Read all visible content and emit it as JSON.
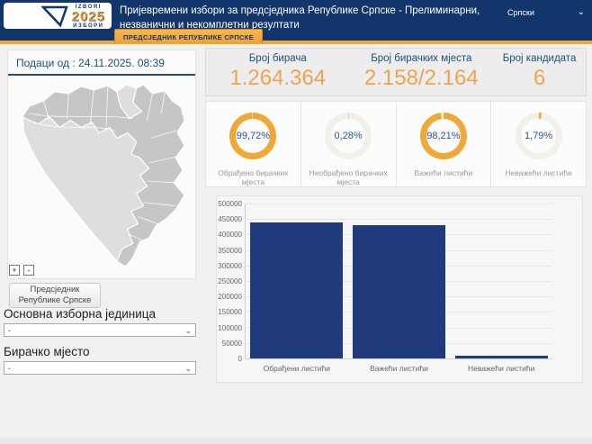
{
  "header": {
    "logo": {
      "top": "IZBORI",
      "year": "2025",
      "bottom": "ИЗБОРИ"
    },
    "title": "Пријевремени избори за предсједника Републике Српске - Прелиминарни, незванични и некомплетни резултати",
    "language": {
      "label": "Српски",
      "chevron": "⌄"
    },
    "tab": "ПРЕДСЈЕДНИК РЕПУБЛИКЕ СРПСКЕ"
  },
  "sidebar": {
    "data_as_of": "Подаци од : 24.11.2025. 08:39",
    "map_zoom_in": "+",
    "map_zoom_out": "-",
    "race_button": "Предсједник Републике Српске",
    "select_chevron": "⌄",
    "filters": [
      {
        "label": "Основна изборна јединица",
        "value": "-"
      },
      {
        "label": "Бирачко мјесто",
        "value": "-"
      }
    ]
  },
  "stats": [
    {
      "label": "Број бирача",
      "value": "1.264.364"
    },
    {
      "label": "Број бирачких мјеста",
      "value": "2.158/2.164"
    },
    {
      "label": "Број кандидата",
      "value": "6"
    }
  ],
  "gauges": [
    {
      "label": "Обрађено бирачких мјеста",
      "display": "99,72%",
      "percent": 99.72
    },
    {
      "label": "Необрађено бирачких мјеста",
      "display": "0,28%",
      "percent": 0.28
    },
    {
      "label": "Важећи листићи",
      "display": "98,21%",
      "percent": 98.21
    },
    {
      "label": "Неважећи листићи",
      "display": "1,79%",
      "percent": 1.79
    }
  ],
  "chart_data": {
    "type": "bar",
    "categories": [
      "Обрађени листићи",
      "Важећи листићи",
      "Неважећи листићи"
    ],
    "values": [
      438000,
      430000,
      7800
    ],
    "title": "",
    "xlabel": "",
    "ylabel": "",
    "ylim": [
      0,
      500000
    ],
    "ytick_step": 50000,
    "grid": true,
    "legend": false
  },
  "colors": {
    "header_navy": "#12366b",
    "accent_orange": "#f0a83a",
    "stat_value_orange": "#f0a24e",
    "bar_blue": "#1e3a7a",
    "donut_orange": "#f0a838",
    "donut_track": "#f3f0ea",
    "percent_blue": "#2b5797"
  }
}
